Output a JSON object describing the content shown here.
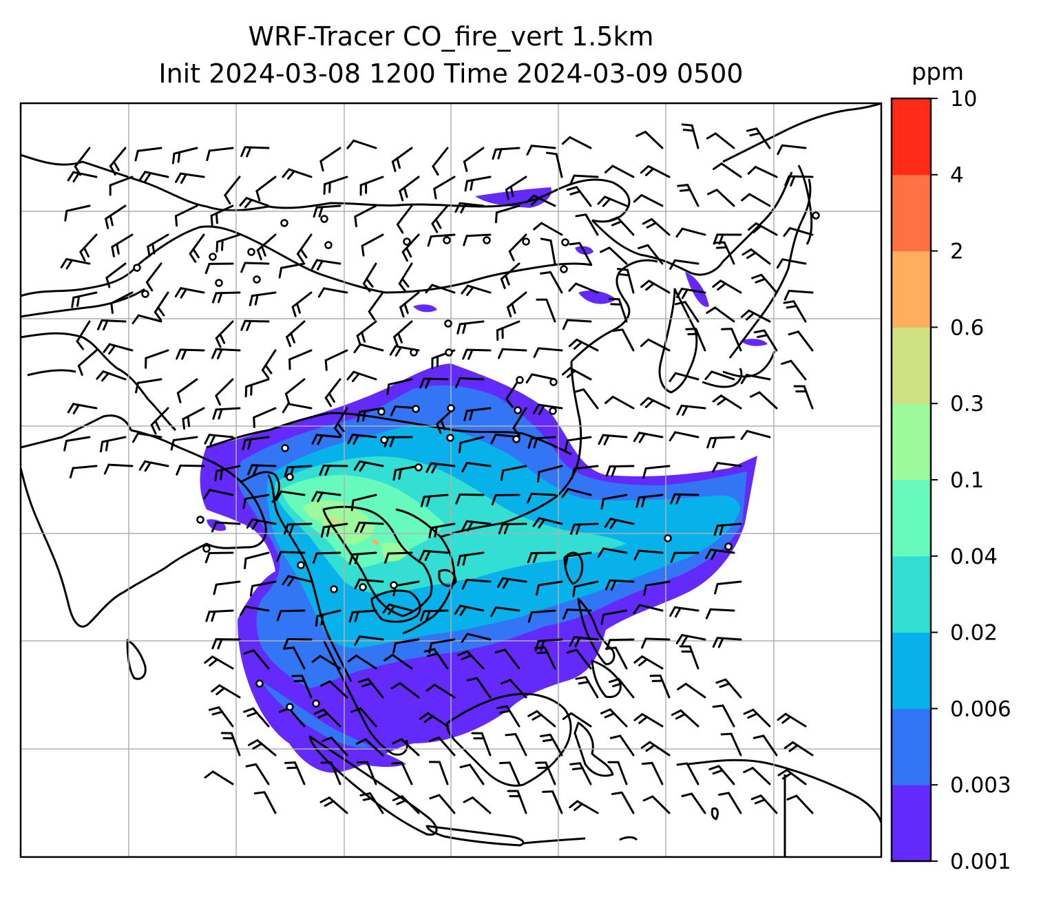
{
  "title": {
    "line1": "WRF-Tracer CO_fire_vert 1.5km",
    "line2": "Init 2024-03-08 1200 Time 2024-03-09 0500"
  },
  "colorbar": {
    "unit": "ppm",
    "levels": [
      "0.001",
      "0.003",
      "0.006",
      "0.02",
      "0.04",
      "0.1",
      "0.3",
      "0.6",
      "2",
      "4",
      "10"
    ],
    "colors": [
      "#6429fb",
      "#3376f5",
      "#07b2ea",
      "#33ded3",
      "#67fabd",
      "#9cfa9a",
      "#cfe183",
      "#ffad5f",
      "#ff7140",
      "#ff2a18"
    ]
  },
  "map": {
    "grid": true,
    "wind_barbs": true,
    "calm_markers": true
  }
}
